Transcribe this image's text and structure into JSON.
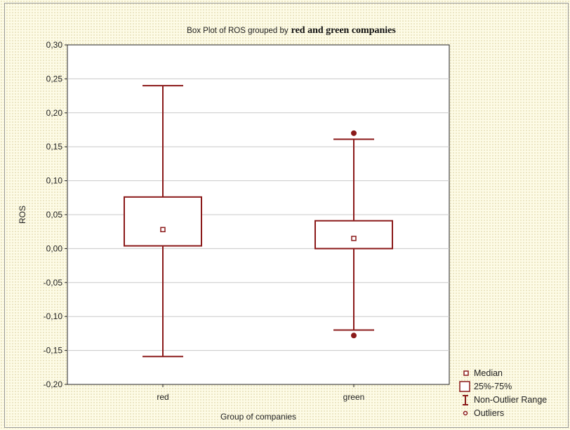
{
  "chart_data": {
    "type": "box",
    "title_prefix": "Box Plot of ROS grouped by",
    "title_emphasis": "red and green companies",
    "xlabel": "Group of companies",
    "ylabel": "ROS",
    "ylim": [
      -0.2,
      0.3
    ],
    "yticks": [
      "0,30",
      "0,25",
      "0,20",
      "0,15",
      "0,10",
      "0,05",
      "0,00",
      "-0,05",
      "-0,10",
      "-0,15",
      "-0,20"
    ],
    "ytick_values": [
      0.3,
      0.25,
      0.2,
      0.15,
      0.1,
      0.05,
      0.0,
      -0.05,
      -0.1,
      -0.15,
      -0.2
    ],
    "grid": true,
    "categories": [
      "red",
      "green"
    ],
    "boxes": [
      {
        "category": "red",
        "median": 0.028,
        "q1": 0.004,
        "q3": 0.076,
        "whisker_low": -0.159,
        "whisker_high": 0.24,
        "outliers": []
      },
      {
        "category": "green",
        "median": 0.015,
        "q1": 0.0,
        "q3": 0.041,
        "whisker_low": -0.12,
        "whisker_high": 0.161,
        "outliers": [
          0.17,
          -0.128
        ]
      }
    ],
    "legend": {
      "placement": "bottom-right",
      "entries": [
        "Median",
        "25%-75%",
        "Non-Outlier Range",
        "Outliers"
      ]
    },
    "colors": {
      "series": "#8b1a1a",
      "grid": "#c8c8c8",
      "axis": "#222222"
    }
  }
}
